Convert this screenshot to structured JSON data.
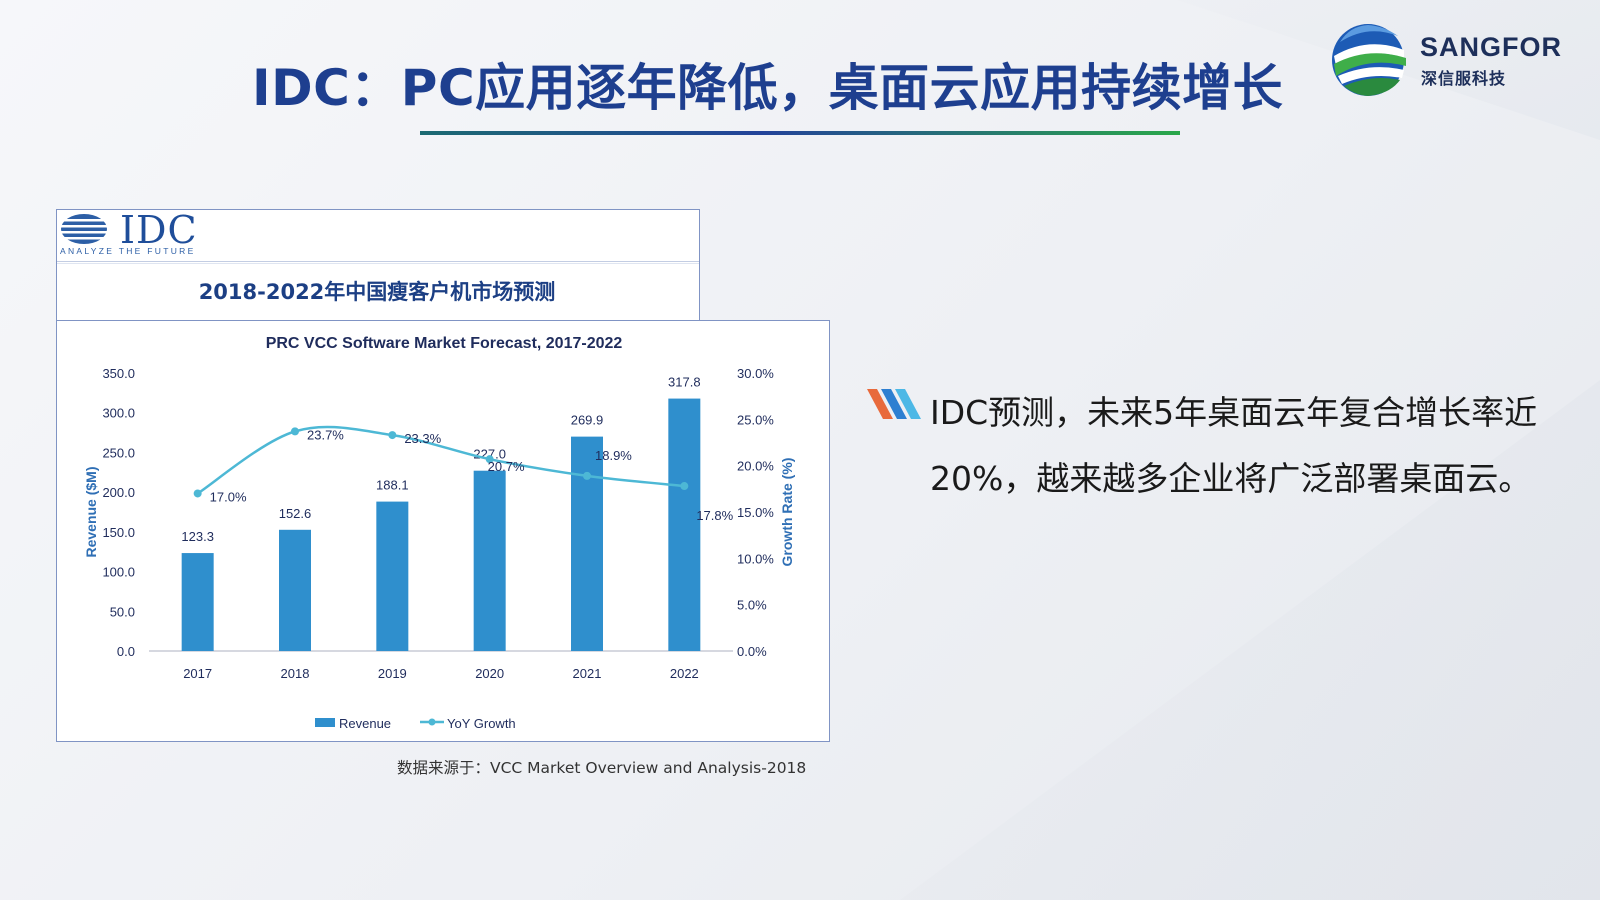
{
  "slide": {
    "title": "IDC：PC应用逐年降低，桌面云应用持续增长",
    "caption": "数据来源于：VCC Market Overview and Analysis-2018",
    "bullet_text": "IDC预测，未来5年桌面云年复合增长率近20%，越来越多企业将广泛部署桌面云。"
  },
  "logo": {
    "name": "SANGFOR",
    "subtitle": "深信服科技"
  },
  "idc_panel": {
    "brand": "IDC",
    "tagline": "ANALYZE THE FUTURE",
    "heading": "2018-2022年中国瘦客户机市场预测"
  },
  "colors": {
    "title": "#1e3f8f",
    "bar": "#2f8fcd",
    "line": "#4db8d5",
    "axis_text": "#1f2c5c"
  },
  "chart_data": {
    "type": "bar",
    "title": "PRC VCC Software Market Forecast, 2017-2022",
    "categories": [
      "2017",
      "2018",
      "2019",
      "2020",
      "2021",
      "2022"
    ],
    "series": [
      {
        "name": "Revenue",
        "type": "bar",
        "axis": "left",
        "values": [
          123.3,
          152.6,
          188.1,
          227.0,
          269.9,
          317.8
        ],
        "labels": [
          "123.3",
          "152.6",
          "188.1",
          "227.0",
          "269.9",
          "317.8"
        ]
      },
      {
        "name": "YoY Growth",
        "type": "line",
        "axis": "right",
        "values": [
          17.0,
          23.7,
          23.3,
          20.7,
          18.9,
          17.8
        ],
        "labels": [
          "17.0%",
          "23.7%",
          "23.3%",
          "20.7%",
          "18.9%",
          "17.8%"
        ]
      }
    ],
    "ylabel": "Revenue ($M)",
    "y2label": "Growth Rate (%)",
    "ylim": [
      0,
      350
    ],
    "y2lim": [
      0,
      30
    ],
    "yticks": [
      "0.0",
      "50.0",
      "100.0",
      "150.0",
      "200.0",
      "250.0",
      "300.0",
      "350.0"
    ],
    "y2ticks": [
      "0.0%",
      "5.0%",
      "10.0%",
      "15.0%",
      "20.0%",
      "25.0%",
      "30.0%"
    ],
    "grid": false,
    "legend": "bottom-center"
  }
}
